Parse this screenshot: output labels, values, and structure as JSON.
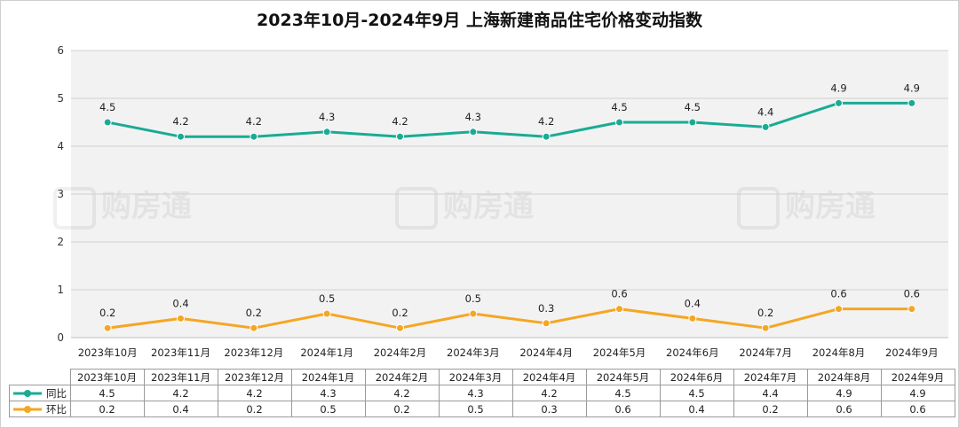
{
  "chart_data": {
    "type": "line",
    "title": "2023年10月-2024年9月 上海新建商品住宅价格变动指数",
    "categories": [
      "2023年10月",
      "2023年11月",
      "2023年12月",
      "2024年1月",
      "2024年2月",
      "2024年3月",
      "2024年4月",
      "2024年5月",
      "2024年6月",
      "2024年7月",
      "2024年8月",
      "2024年9月"
    ],
    "series": [
      {
        "name": "同比",
        "color": "#1aab94",
        "values": [
          4.5,
          4.2,
          4.2,
          4.3,
          4.2,
          4.3,
          4.2,
          4.5,
          4.5,
          4.4,
          4.9,
          4.9
        ],
        "labels": [
          "4.5",
          "4.2",
          "4.2",
          "4.3",
          "4.2",
          "4.3",
          "4.2",
          "4.5",
          "4.5",
          "4.4",
          "4.9",
          "4.9"
        ]
      },
      {
        "name": "环比",
        "color": "#f5a623",
        "values": [
          0.2,
          0.4,
          0.2,
          0.5,
          0.2,
          0.5,
          0.3,
          0.6,
          0.4,
          0.2,
          0.6,
          0.6
        ],
        "labels": [
          "0.2",
          "0.4",
          "0.2",
          "0.5",
          "0.2",
          "0.5",
          "0.3",
          "0.6",
          "0.4",
          "0.2",
          "0.6",
          "0.6"
        ]
      }
    ],
    "ylim": [
      0,
      6
    ],
    "yticks": [
      "0",
      "1",
      "2",
      "3",
      "4",
      "5",
      "6"
    ],
    "grid": true,
    "legend": "data-table"
  },
  "watermark": "购房通"
}
